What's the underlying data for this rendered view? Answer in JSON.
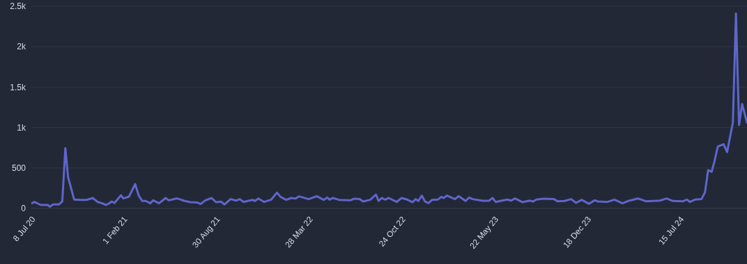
{
  "chart_data": {
    "type": "line",
    "x": [
      "2020-07-08",
      "2020-07-15",
      "2020-07-29",
      "2020-08-14",
      "2020-08-19",
      "2020-08-26",
      "2020-09-08",
      "2020-09-16",
      "2020-09-23",
      "2020-09-29",
      "2020-10-13",
      "2020-10-27",
      "2020-11-10",
      "2020-11-24",
      "2020-12-05",
      "2020-12-14",
      "2020-12-24",
      "2020-12-30",
      "2021-01-06",
      "2021-01-12",
      "2021-01-27",
      "2021-02-01",
      "2021-02-14",
      "2021-02-28",
      "2021-03-08",
      "2021-03-16",
      "2021-03-24",
      "2021-04-03",
      "2021-04-10",
      "2021-04-23",
      "2021-05-08",
      "2021-05-15",
      "2021-06-03",
      "2021-06-20",
      "2021-07-03",
      "2021-07-19",
      "2021-07-26",
      "2021-08-06",
      "2021-08-20",
      "2021-08-30",
      "2021-09-11",
      "2021-09-18",
      "2021-10-02",
      "2021-10-15",
      "2021-10-23",
      "2021-10-31",
      "2021-11-13",
      "2021-11-21",
      "2021-11-26",
      "2021-12-04",
      "2021-12-17",
      "2022-01-02",
      "2022-01-15",
      "2022-01-23",
      "2022-02-05",
      "2022-02-16",
      "2022-02-26",
      "2022-03-06",
      "2022-03-28",
      "2022-04-15",
      "2022-05-01",
      "2022-05-09",
      "2022-05-14",
      "2022-05-22",
      "2022-06-04",
      "2022-06-30",
      "2022-07-08",
      "2022-07-21",
      "2022-07-29",
      "2022-08-14",
      "2022-08-27",
      "2022-09-02",
      "2022-09-09",
      "2022-09-17",
      "2022-09-25",
      "2022-10-13",
      "2022-10-24",
      "2022-11-06",
      "2022-11-18",
      "2022-11-25",
      "2022-12-01",
      "2022-12-09",
      "2022-12-16",
      "2022-12-24",
      "2023-01-01",
      "2023-01-14",
      "2023-01-22",
      "2023-01-27",
      "2023-02-04",
      "2023-02-22",
      "2023-03-02",
      "2023-03-18",
      "2023-03-26",
      "2023-04-03",
      "2023-04-26",
      "2023-05-10",
      "2023-05-18",
      "2023-05-25",
      "2023-06-08",
      "2023-06-21",
      "2023-06-29",
      "2023-07-08",
      "2023-07-25",
      "2023-08-10",
      "2023-08-18",
      "2023-08-25",
      "2023-09-10",
      "2023-10-04",
      "2023-10-12",
      "2023-10-28",
      "2023-11-12",
      "2023-11-23",
      "2023-12-06",
      "2023-12-22",
      "2024-01-04",
      "2024-01-12",
      "2024-02-02",
      "2024-02-18",
      "2024-03-07",
      "2024-03-23",
      "2024-04-11",
      "2024-04-29",
      "2024-05-31",
      "2024-06-15",
      "2024-06-29",
      "2024-07-22",
      "2024-07-31",
      "2024-08-07",
      "2024-08-18",
      "2024-09-02",
      "2024-09-10",
      "2024-09-17",
      "2024-09-25",
      "2024-10-01",
      "2024-10-09",
      "2024-10-22",
      "2024-10-30",
      "2024-11-12",
      "2024-11-19",
      "2024-11-26",
      "2024-12-03",
      "2024-12-14"
    ],
    "series": [
      {
        "color": "#5e66cc",
        "values": [
          60,
          80,
          43,
          43,
          20,
          49,
          49,
          86,
          746,
          387,
          109,
          105,
          105,
          129,
          80,
          66,
          43,
          58,
          86,
          66,
          163,
          124,
          146,
          301,
          160,
          92,
          92,
          63,
          100,
          63,
          129,
          100,
          124,
          92,
          77,
          72,
          55,
          100,
          129,
          77,
          83,
          49,
          115,
          97,
          115,
          80,
          97,
          106,
          92,
          123,
          80,
          109,
          195,
          143,
          106,
          129,
          123,
          149,
          115,
          152,
          106,
          135,
          109,
          129,
          106,
          100,
          120,
          115,
          86,
          106,
          172,
          92,
          129,
          109,
          129,
          80,
          129,
          109,
          77,
          115,
          92,
          158,
          86,
          66,
          106,
          109,
          143,
          129,
          158,
          115,
          152,
          92,
          135,
          115,
          95,
          95,
          129,
          80,
          97,
          109,
          97,
          123,
          77,
          97,
          86,
          109,
          120,
          115,
          89,
          92,
          115,
          69,
          106,
          57,
          100,
          86,
          80,
          109,
          63,
          97,
          123,
          89,
          97,
          123,
          92,
          89,
          109,
          80,
          109,
          115,
          201,
          473,
          453,
          574,
          766,
          794,
          697,
          1061,
          2409,
          1032,
          1291,
          1061
        ]
      }
    ],
    "xlim": [
      "2020-07-08",
      "2024-12-14"
    ],
    "xticks": [
      {
        "value": "2020-07-08",
        "label": "8 Jul 20"
      },
      {
        "value": "2021-02-01",
        "label": "1 Feb 21"
      },
      {
        "value": "2021-08-30",
        "label": "30 Aug 21"
      },
      {
        "value": "2022-03-28",
        "label": "28 Mar 22"
      },
      {
        "value": "2022-10-24",
        "label": "24 Oct 22"
      },
      {
        "value": "2023-05-22",
        "label": "22 May 23"
      },
      {
        "value": "2023-12-18",
        "label": "18 Dec 23"
      },
      {
        "value": "2024-07-15",
        "label": "15 Jul 24"
      }
    ],
    "ylim": [
      0,
      2500
    ],
    "yticks": [
      0,
      500,
      {
        "value": 1000,
        "label": "1k"
      },
      {
        "value": 1500,
        "label": "1.5k"
      },
      {
        "value": 2000,
        "label": "2k"
      },
      {
        "value": 2500,
        "label": "2.5k"
      }
    ],
    "grid": "y",
    "legend": false,
    "marker": "none",
    "line_style": "solid"
  }
}
